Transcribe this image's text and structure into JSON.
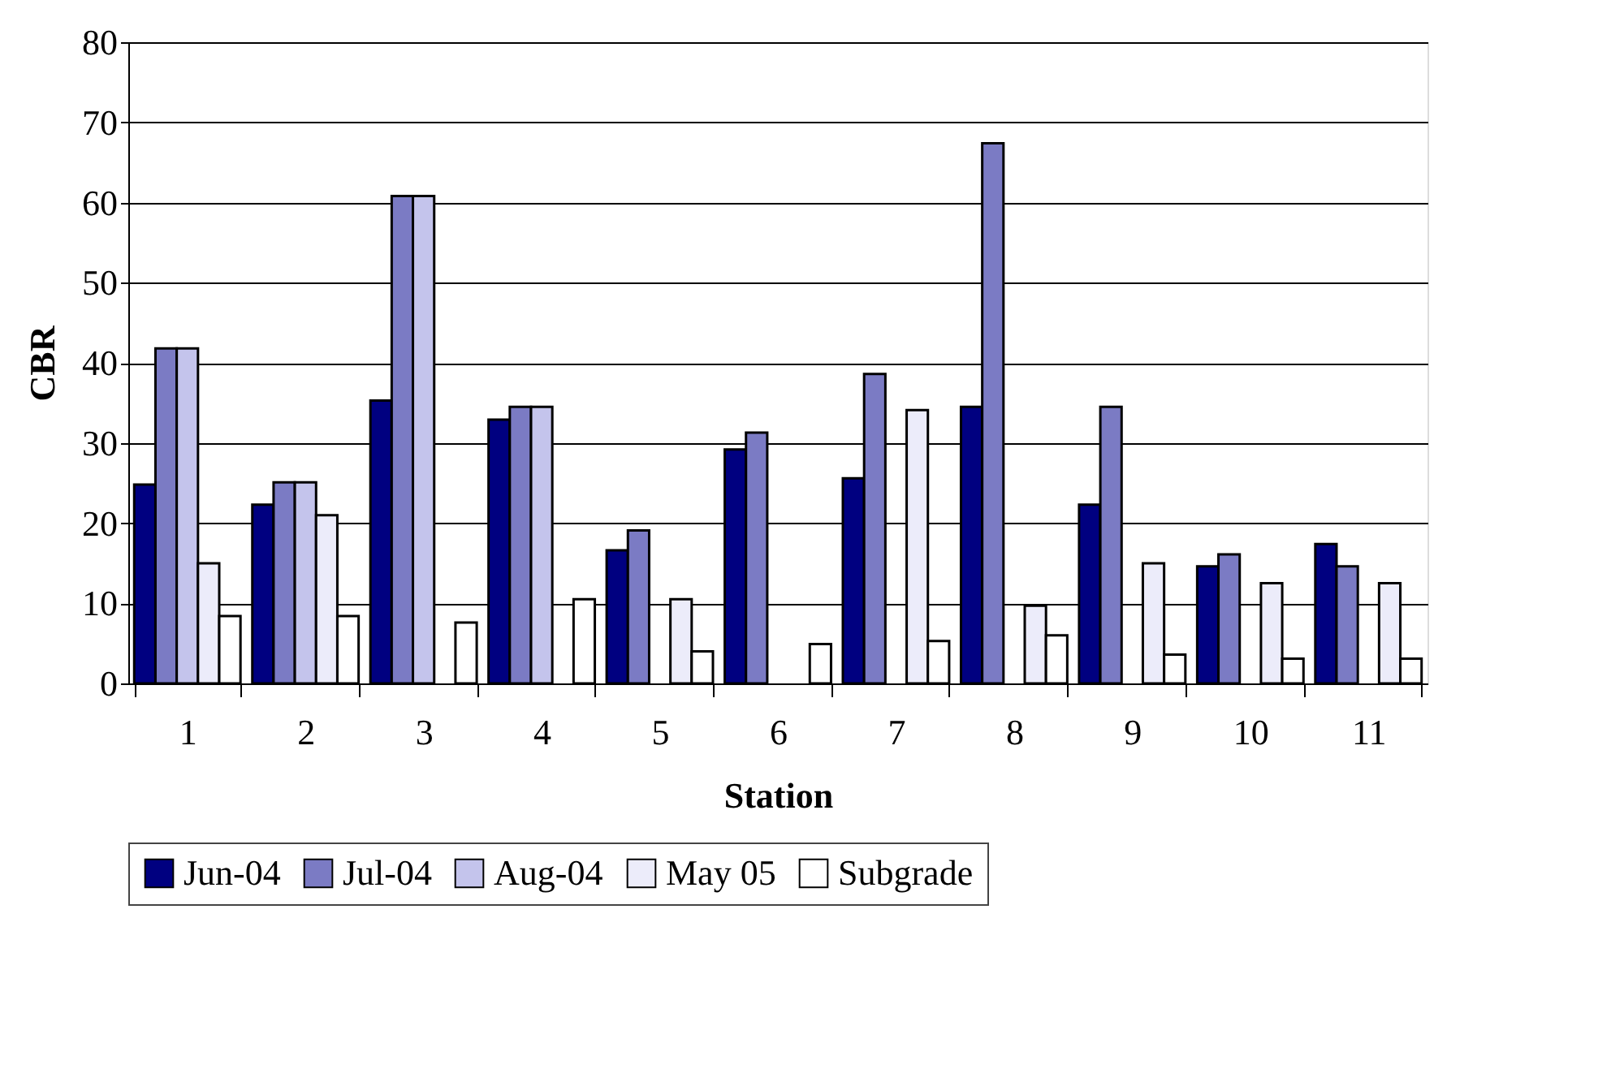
{
  "chart_data": {
    "type": "bar",
    "xlabel": "Station",
    "ylabel": "CBR",
    "categories": [
      "1",
      "2",
      "3",
      "4",
      "5",
      "6",
      "7",
      "8",
      "9",
      "10",
      "11"
    ],
    "series": [
      {
        "name": "Jun-04",
        "color": "#000080",
        "values": [
          24.8,
          22.3,
          35.3,
          32.9,
          16.6,
          29.2,
          25.6,
          34.5,
          22.3,
          14.6,
          17.4
        ]
      },
      {
        "name": "Jul-04",
        "color": "#7b7bc4",
        "values": [
          41.8,
          25.1,
          60.8,
          34.5,
          19.1,
          31.3,
          38.6,
          67.4,
          34.5,
          16.1,
          14.6
        ]
      },
      {
        "name": "Aug-04",
        "color": "#c4c4ec",
        "values": [
          41.8,
          25.1,
          60.8,
          34.5,
          null,
          null,
          null,
          null,
          null,
          null,
          null
        ]
      },
      {
        "name": "May 05",
        "color": "#ececfa",
        "values": [
          15,
          21,
          null,
          null,
          10.5,
          null,
          34.1,
          9.7,
          15,
          12.5,
          12.5
        ]
      },
      {
        "name": "Subgrade",
        "color": "#ffffff",
        "values": [
          8.4,
          8.4,
          7.6,
          10.5,
          4,
          4.9,
          5.3,
          6,
          3.6,
          3.1,
          3.1
        ]
      }
    ],
    "ylim": [
      0,
      80
    ],
    "yticks": [
      0,
      10,
      20,
      30,
      40,
      50,
      60,
      70,
      80
    ],
    "grid": "y",
    "legend": "bottom"
  }
}
